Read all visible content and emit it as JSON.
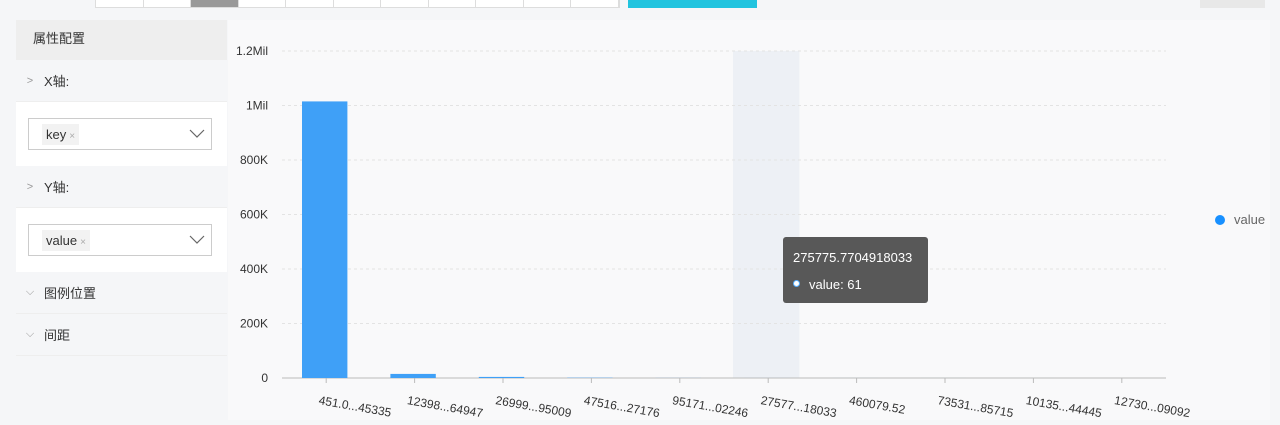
{
  "toolbar": {
    "segments": 11,
    "active_segment": 2,
    "accent_color": "#21c4df"
  },
  "panel": {
    "title": "属性配置",
    "x_axis": {
      "label": "X轴:",
      "selected": "key",
      "remove": "×"
    },
    "y_axis": {
      "label": "Y轴:",
      "selected": "value",
      "remove": "×"
    },
    "legend_position": "图例位置",
    "spacing": "间距"
  },
  "chart_data": {
    "type": "bar",
    "categories": [
      "451.0...45335",
      "12398...64947",
      "26999...95009",
      "47516...27176",
      "95171...02246",
      "27577...18033",
      "460079.52",
      "73531...85715",
      "10135...44445",
      "12730...09092"
    ],
    "series": [
      {
        "name": "value",
        "values": [
          1015000,
          15000,
          4000,
          1000,
          200,
          61,
          50,
          30,
          20,
          10
        ],
        "color": "#3fa0f7"
      }
    ],
    "y_ticks": [
      "0",
      "200K",
      "400K",
      "600K",
      "800K",
      "1Mil",
      "1.2Mil"
    ],
    "ylim": [
      0,
      1200000
    ],
    "grid": true,
    "legend": "right",
    "highlight_index": 5,
    "tooltip": {
      "title": "275775.7704918033",
      "line": "value: 61"
    }
  }
}
